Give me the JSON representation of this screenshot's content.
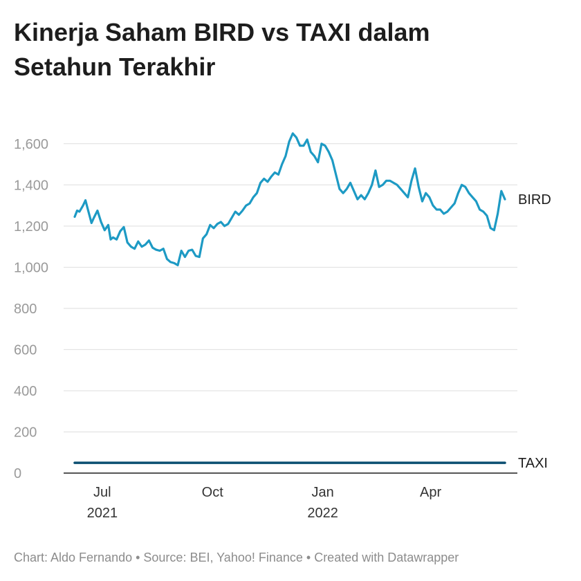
{
  "title": "Kinerja Saham BIRD vs TAXI dalam Setahun Terakhir",
  "footer": "Chart: Aldo Fernando • Source: BEI, Yahoo! Finance • Created with Datawrapper",
  "chart_data": {
    "type": "line",
    "title": "Kinerja Saham BIRD vs TAXI dalam Setahun Terakhir",
    "xlabel": "",
    "ylabel": "",
    "x_range": [
      "2021-06-01",
      "2022-06-02"
    ],
    "ylim": [
      0,
      1700
    ],
    "yticks": [
      0,
      200,
      400,
      600,
      800,
      1000,
      1200,
      1400,
      1600
    ],
    "ytick_labels": [
      "0",
      "200",
      "400",
      "600",
      "800",
      "1,000",
      "1,200",
      "1,400",
      "1,600"
    ],
    "xticks": [
      {
        "date": "2021-07-01",
        "label": "Jul",
        "sublabel": "2021"
      },
      {
        "date": "2021-10-01",
        "label": "Oct",
        "sublabel": ""
      },
      {
        "date": "2022-01-01",
        "label": "Jan",
        "sublabel": "2022"
      },
      {
        "date": "2022-04-01",
        "label": "Apr",
        "sublabel": ""
      }
    ],
    "grid": true,
    "legend": "end-of-line labels",
    "series": [
      {
        "name": "BIRD",
        "color": "#1d9ac4",
        "x": [
          "2021-06-08",
          "2021-06-10",
          "2021-06-12",
          "2021-06-15",
          "2021-06-17",
          "2021-06-19",
          "2021-06-22",
          "2021-06-24",
          "2021-06-27",
          "2021-06-30",
          "2021-07-03",
          "2021-07-06",
          "2021-07-08",
          "2021-07-10",
          "2021-07-13",
          "2021-07-16",
          "2021-07-19",
          "2021-07-22",
          "2021-07-25",
          "2021-07-28",
          "2021-07-31",
          "2021-08-03",
          "2021-08-06",
          "2021-08-09",
          "2021-08-12",
          "2021-08-15",
          "2021-08-18",
          "2021-08-21",
          "2021-08-24",
          "2021-08-27",
          "2021-08-30",
          "2021-09-02",
          "2021-09-05",
          "2021-09-08",
          "2021-09-11",
          "2021-09-14",
          "2021-09-17",
          "2021-09-20",
          "2021-09-23",
          "2021-09-26",
          "2021-09-29",
          "2021-10-02",
          "2021-10-05",
          "2021-10-08",
          "2021-10-11",
          "2021-10-14",
          "2021-10-17",
          "2021-10-20",
          "2021-10-23",
          "2021-10-26",
          "2021-10-29",
          "2021-11-01",
          "2021-11-04",
          "2021-11-07",
          "2021-11-10",
          "2021-11-13",
          "2021-11-16",
          "2021-11-19",
          "2021-11-22",
          "2021-11-25",
          "2021-11-28",
          "2021-12-01",
          "2021-12-04",
          "2021-12-07",
          "2021-12-10",
          "2021-12-13",
          "2021-12-16",
          "2021-12-19",
          "2021-12-22",
          "2021-12-25",
          "2021-12-28",
          "2021-12-31",
          "2022-01-03",
          "2022-01-06",
          "2022-01-09",
          "2022-01-12",
          "2022-01-15",
          "2022-01-18",
          "2022-01-21",
          "2022-01-24",
          "2022-01-27",
          "2022-01-30",
          "2022-02-02",
          "2022-02-05",
          "2022-02-08",
          "2022-02-11",
          "2022-02-14",
          "2022-02-17",
          "2022-02-20",
          "2022-02-23",
          "2022-02-26",
          "2022-03-01",
          "2022-03-04",
          "2022-03-07",
          "2022-03-10",
          "2022-03-13",
          "2022-03-16",
          "2022-03-19",
          "2022-03-22",
          "2022-03-25",
          "2022-03-28",
          "2022-03-31",
          "2022-04-03",
          "2022-04-06",
          "2022-04-09",
          "2022-04-12",
          "2022-04-15",
          "2022-04-18",
          "2022-04-21",
          "2022-04-24",
          "2022-04-27",
          "2022-04-30",
          "2022-05-03",
          "2022-05-06",
          "2022-05-09",
          "2022-05-12",
          "2022-05-15",
          "2022-05-18",
          "2022-05-21",
          "2022-05-24",
          "2022-05-27",
          "2022-05-30",
          "2022-06-02"
        ],
        "values": [
          1245,
          1275,
          1270,
          1300,
          1325,
          1280,
          1215,
          1240,
          1275,
          1220,
          1180,
          1205,
          1135,
          1145,
          1135,
          1175,
          1195,
          1120,
          1100,
          1090,
          1125,
          1100,
          1110,
          1130,
          1095,
          1085,
          1080,
          1090,
          1040,
          1025,
          1020,
          1010,
          1080,
          1050,
          1080,
          1085,
          1055,
          1050,
          1140,
          1160,
          1205,
          1190,
          1210,
          1220,
          1200,
          1210,
          1240,
          1270,
          1255,
          1275,
          1300,
          1310,
          1340,
          1360,
          1410,
          1430,
          1415,
          1440,
          1460,
          1450,
          1500,
          1540,
          1610,
          1650,
          1630,
          1590,
          1590,
          1620,
          1560,
          1540,
          1510,
          1600,
          1590,
          1560,
          1520,
          1450,
          1380,
          1360,
          1380,
          1410,
          1370,
          1330,
          1350,
          1330,
          1360,
          1400,
          1470,
          1390,
          1400,
          1420,
          1420,
          1410,
          1400,
          1380,
          1360,
          1340,
          1420,
          1480,
          1390,
          1320,
          1360,
          1340,
          1300,
          1280,
          1280,
          1260,
          1270,
          1290,
          1310,
          1360,
          1400,
          1390,
          1360,
          1340,
          1320,
          1280,
          1270,
          1250,
          1190,
          1180,
          1260,
          1370,
          1330
        ]
      },
      {
        "name": "TAXI",
        "color": "#0b4f71",
        "x": [
          "2021-06-08",
          "2022-06-02"
        ],
        "values": [
          50,
          50
        ]
      }
    ]
  }
}
